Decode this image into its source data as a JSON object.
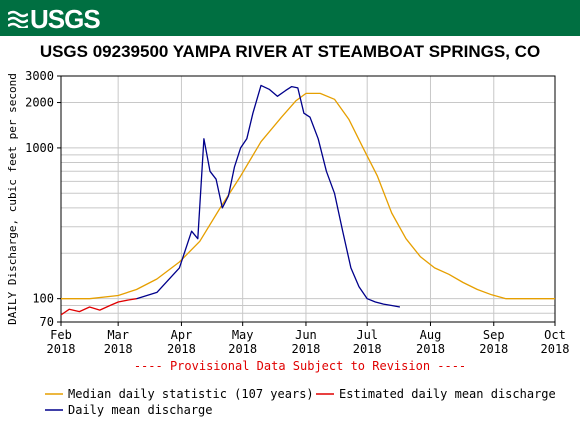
{
  "header": {
    "logo_text": "USGS",
    "banner_color": "#006f41"
  },
  "chart_data": {
    "type": "line",
    "title": "USGS 09239500 YAMPA RIVER AT STEAMBOAT SPRINGS, CO",
    "ylabel": "DAILY Discharge, cubic feet per second",
    "y_scale": "log",
    "ylim": [
      70,
      3000
    ],
    "y_ticks": [
      70,
      100,
      1000,
      2000,
      3000
    ],
    "y_tick_labels": [
      "70",
      "100",
      "1000",
      "2000",
      "3000"
    ],
    "x_ticks": [
      {
        "date": "2018-02-01",
        "month": "Feb",
        "year": "2018"
      },
      {
        "date": "2018-03-01",
        "month": "Mar",
        "year": "2018"
      },
      {
        "date": "2018-04-01",
        "month": "Apr",
        "year": "2018"
      },
      {
        "date": "2018-05-01",
        "month": "May",
        "year": "2018"
      },
      {
        "date": "2018-06-01",
        "month": "Jun",
        "year": "2018"
      },
      {
        "date": "2018-07-01",
        "month": "Jul",
        "year": "2018"
      },
      {
        "date": "2018-08-01",
        "month": "Aug",
        "year": "2018"
      },
      {
        "date": "2018-09-01",
        "month": "Sep",
        "year": "2018"
      },
      {
        "date": "2018-10-01",
        "month": "Oct",
        "year": "2018"
      }
    ],
    "xlim": [
      "2018-02-01",
      "2018-10-01"
    ],
    "provisional_note": "---- Provisional Data Subject to Revision ----",
    "grid": true,
    "series": [
      {
        "name": "Median daily statistic (107 years)",
        "color": "#e69f00",
        "x": [
          "2018-02-01",
          "2018-02-15",
          "2018-03-01",
          "2018-03-10",
          "2018-03-20",
          "2018-03-31",
          "2018-04-10",
          "2018-04-20",
          "2018-04-30",
          "2018-05-10",
          "2018-05-20",
          "2018-05-27",
          "2018-06-01",
          "2018-06-08",
          "2018-06-15",
          "2018-06-22",
          "2018-06-29",
          "2018-07-06",
          "2018-07-13",
          "2018-07-20",
          "2018-07-27",
          "2018-08-03",
          "2018-08-10",
          "2018-08-17",
          "2018-08-24",
          "2018-08-31",
          "2018-09-07",
          "2018-09-14",
          "2018-09-21",
          "2018-09-28",
          "2018-10-01"
        ],
        "y": [
          100,
          100,
          105,
          115,
          135,
          175,
          240,
          400,
          650,
          1100,
          1600,
          2050,
          2300,
          2300,
          2100,
          1550,
          1000,
          650,
          370,
          250,
          190,
          160,
          145,
          128,
          115,
          106,
          100,
          100,
          100,
          100,
          100
        ]
      },
      {
        "name": "Estimated daily mean discharge",
        "color": "#e00000",
        "x": [
          "2018-02-01",
          "2018-02-05",
          "2018-02-10",
          "2018-02-15",
          "2018-02-20",
          "2018-02-25",
          "2018-03-01",
          "2018-03-06",
          "2018-03-10"
        ],
        "y": [
          78,
          85,
          82,
          88,
          84,
          90,
          95,
          98,
          100
        ]
      },
      {
        "name": "Daily mean discharge",
        "color": "#00008b",
        "x": [
          "2018-03-10",
          "2018-03-20",
          "2018-03-31",
          "2018-04-06",
          "2018-04-09",
          "2018-04-12",
          "2018-04-15",
          "2018-04-18",
          "2018-04-21",
          "2018-04-24",
          "2018-04-27",
          "2018-04-30",
          "2018-05-03",
          "2018-05-06",
          "2018-05-10",
          "2018-05-14",
          "2018-05-18",
          "2018-05-22",
          "2018-05-25",
          "2018-05-28",
          "2018-05-31",
          "2018-06-03",
          "2018-06-07",
          "2018-06-11",
          "2018-06-15",
          "2018-06-19",
          "2018-06-23",
          "2018-06-27",
          "2018-07-01",
          "2018-07-05",
          "2018-07-09",
          "2018-07-13",
          "2018-07-17"
        ],
        "y": [
          100,
          110,
          160,
          280,
          250,
          1150,
          700,
          620,
          400,
          480,
          750,
          1000,
          1150,
          1700,
          2600,
          2450,
          2200,
          2400,
          2550,
          2500,
          1700,
          1600,
          1150,
          700,
          500,
          280,
          160,
          120,
          100,
          95,
          92,
          90,
          88
        ]
      }
    ]
  },
  "legend": {
    "items": [
      {
        "label": "Median daily statistic (107 years)",
        "color": "#e69f00"
      },
      {
        "label": "Estimated daily mean discharge",
        "color": "#e00000"
      },
      {
        "label": "Daily mean discharge",
        "color": "#00008b"
      }
    ]
  }
}
